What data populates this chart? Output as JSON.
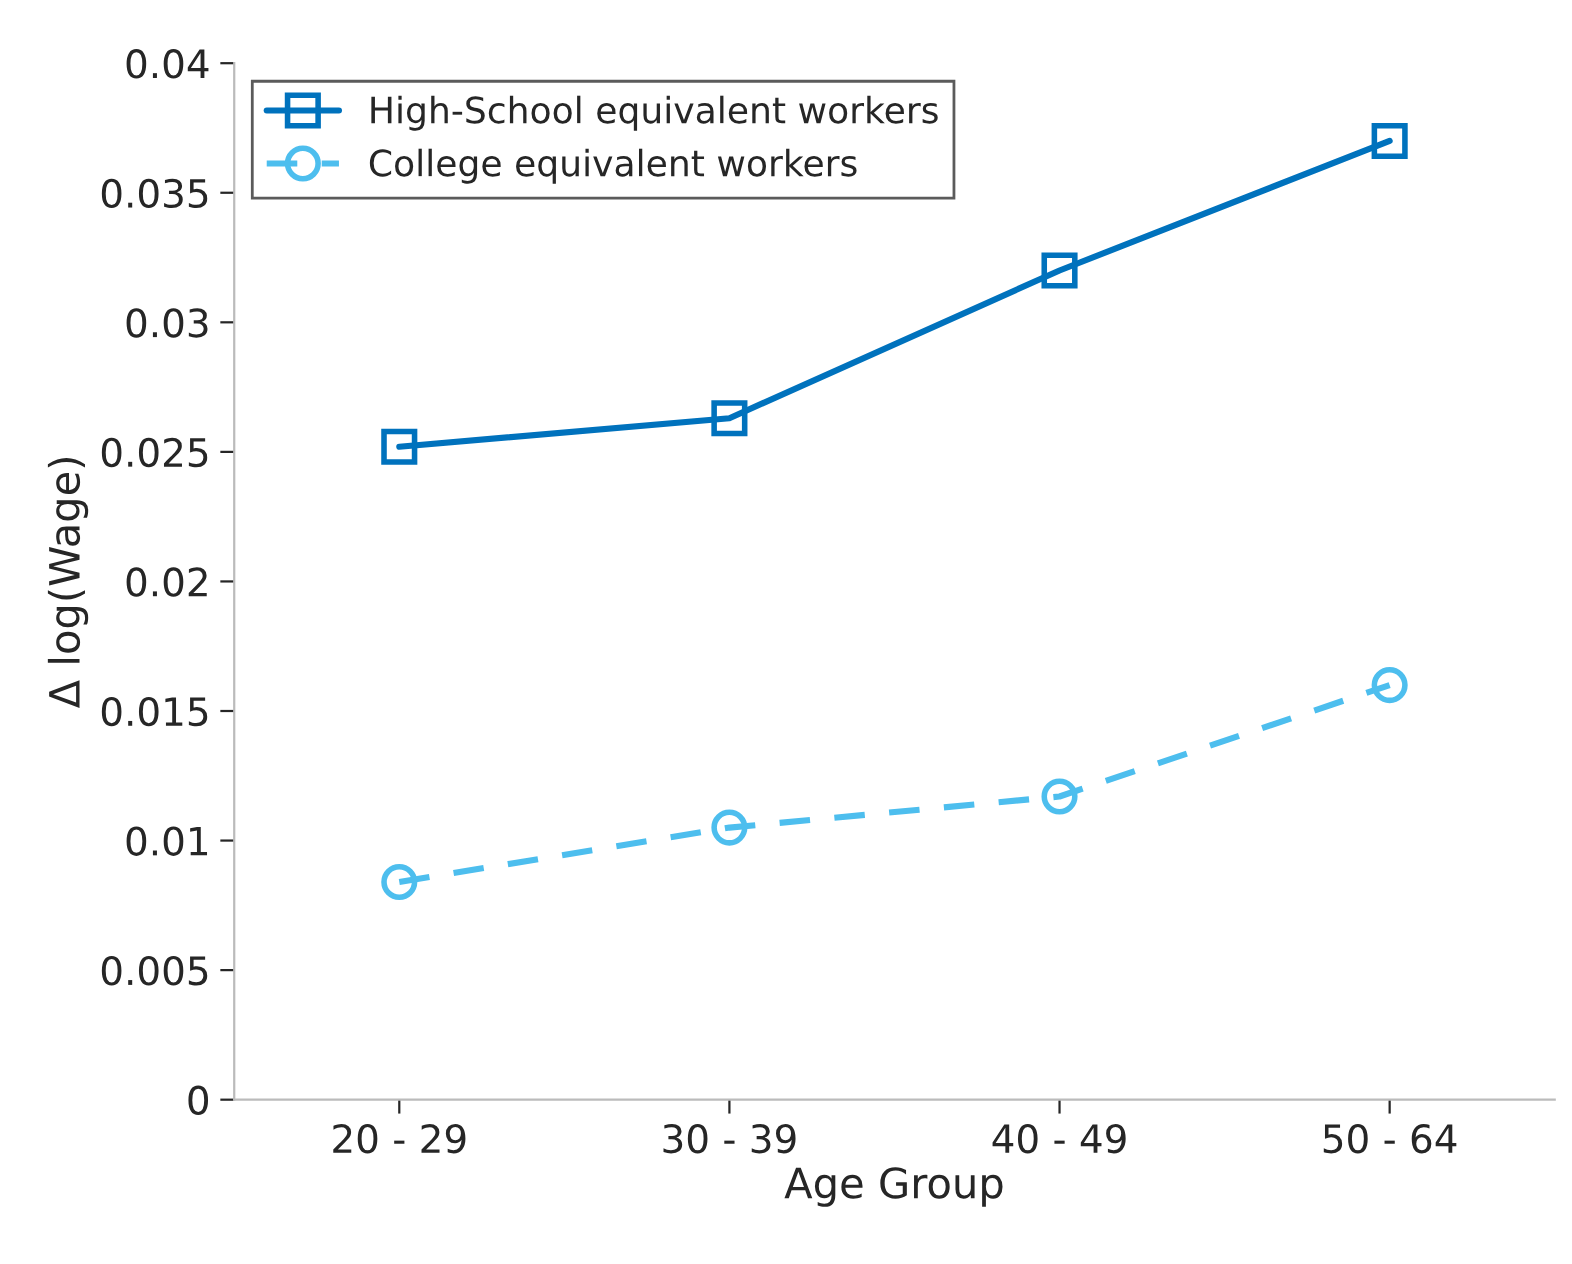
{
  "chart_data": {
    "type": "line",
    "xlabel": "Age Group",
    "ylabel": "Δ log(Wage)",
    "categories": [
      "20 - 29",
      "30 - 39",
      "40 - 49",
      "50 - 64"
    ],
    "series": [
      {
        "name": "High-School equivalent workers",
        "color": "#0072bd",
        "values": [
          0.0252,
          0.0263,
          0.032,
          0.037
        ],
        "marker": "square",
        "line_style": "solid"
      },
      {
        "name": "College equivalent workers",
        "color": "#4dbeee",
        "values": [
          0.0084,
          0.0105,
          0.0117,
          0.016
        ],
        "marker": "circle",
        "line_style": "dashed"
      }
    ],
    "ylim": [
      0,
      0.04
    ],
    "yticks": [
      0,
      0.005,
      0.01,
      0.015,
      0.02,
      0.025,
      0.03,
      0.035,
      0.04
    ],
    "grid": false,
    "legend": "top left"
  }
}
